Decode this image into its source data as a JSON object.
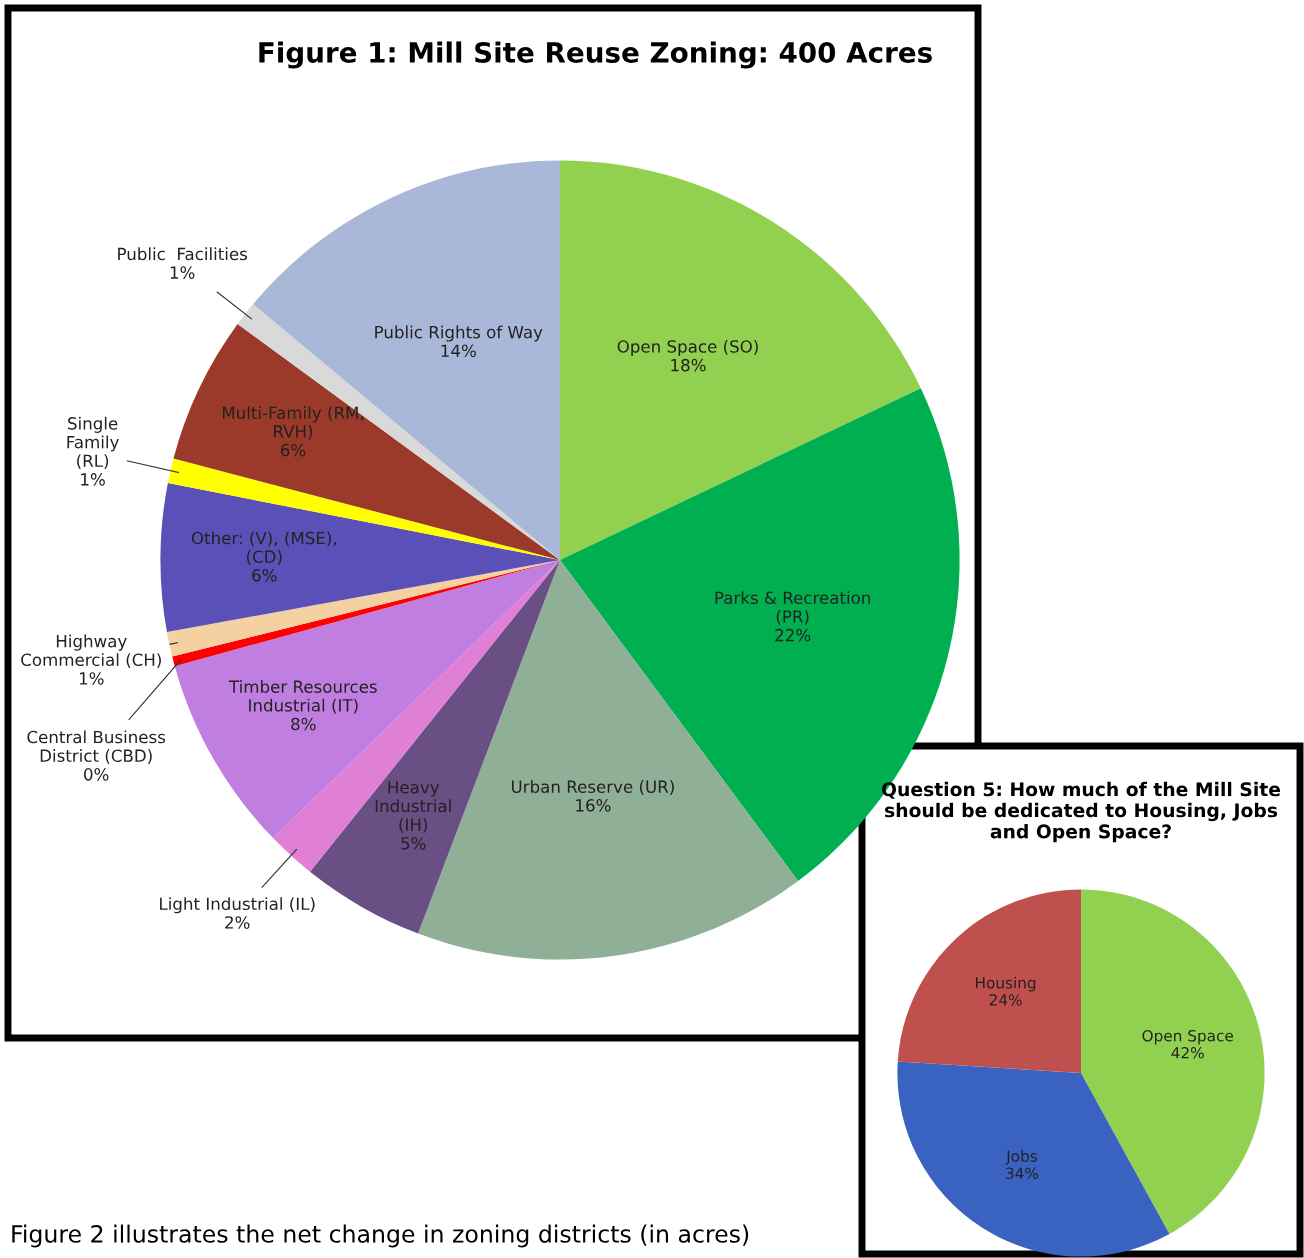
{
  "chart_data": [
    {
      "type": "pie",
      "title": "Figure 1: Mill Site Reuse Zoning: 400 Acres",
      "categories": [
        "Open Space (SO)",
        "Parks & Recreation\n(PR)",
        "Urban Reserve (UR)",
        "Heavy\nIndustrial\n(IH)",
        "Light Industrial (IL)",
        "Timber Resources\nIndustrial (IT)",
        "Central Business\nDistrict (CBD)",
        "Highway\nCommercial (CH)",
        "Other: (V), (MSE),\n(CD)",
        "Single\nFamily\n(RL)",
        "Multi-Family (RM,\nRVH)",
        "Public  Facilities",
        "Public Rights of Way"
      ],
      "values": [
        18,
        22,
        16,
        5,
        2,
        8,
        0.4,
        1,
        6,
        1,
        6,
        1,
        14
      ],
      "value_labels": [
        "18%",
        "22%",
        "16%",
        "5%",
        "2%",
        "8%",
        "0%",
        "1%",
        "6%",
        "1%",
        "6%",
        "1%",
        "14%"
      ],
      "colors": [
        "#92d050",
        "#00b050",
        "#8faf96",
        "#6a4f85",
        "#e07fd6",
        "#c07fe0",
        "#ff0000",
        "#f5d0a0",
        "#5a50b8",
        "#ffff00",
        "#9b3a2a",
        "#d9d9d9",
        "#a9b8d8"
      ],
      "annotations": [
        "Figure 2 illustrates the net change in zoning districts (in acres)"
      ]
    },
    {
      "type": "pie",
      "title": "Question 5: How much of the Mill Site\nshould be dedicated to Housing, Jobs\nand Open Space?",
      "categories": [
        "Open Space",
        "Jobs",
        "Housing"
      ],
      "values": [
        42,
        34,
        24
      ],
      "value_labels": [
        "42%",
        "34%",
        "24%"
      ],
      "colors": [
        "#92d050",
        "#3a62c0",
        "#c0504d"
      ]
    }
  ]
}
